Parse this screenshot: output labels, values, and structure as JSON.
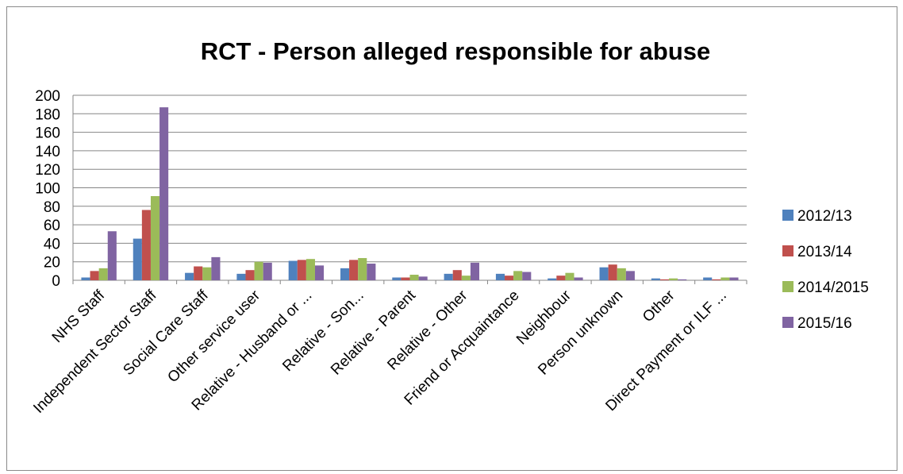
{
  "chart_data": {
    "type": "bar",
    "title": "RCT - Person alleged responsible for abuse",
    "xlabel": "",
    "ylabel": "",
    "ylim": [
      0,
      200
    ],
    "yticks": [
      0,
      20,
      40,
      60,
      80,
      100,
      120,
      140,
      160,
      180,
      200
    ],
    "grid": true,
    "legend_position": "right",
    "categories": [
      "NHS Staff",
      "Independent Sector Staff",
      "Social Care Staff",
      "Other service user",
      "Relative - Husband or ...",
      "Relative - Son...",
      "Relative - Parent",
      "Relative - Other",
      "Friend or Acquaintance",
      "Neighbour",
      "Person unknown",
      "Other",
      "Direct Payment or ILF ..."
    ],
    "series": [
      {
        "name": "2012/13",
        "color": "#4f81bd",
        "values": [
          3,
          45,
          8,
          7,
          21,
          13,
          3,
          7,
          7,
          2,
          14,
          2,
          3
        ]
      },
      {
        "name": "2013/14",
        "color": "#c0504d",
        "values": [
          10,
          76,
          15,
          11,
          22,
          22,
          3,
          11,
          5,
          5,
          17,
          1,
          1
        ]
      },
      {
        "name": "2014/2015",
        "color": "#9bbb59",
        "values": [
          13,
          91,
          14,
          20,
          23,
          24,
          6,
          5,
          10,
          8,
          13,
          2,
          3
        ]
      },
      {
        "name": "2015/16",
        "color": "#8064a2",
        "values": [
          53,
          187,
          25,
          19,
          16,
          18,
          4,
          19,
          9,
          3,
          10,
          1,
          3
        ]
      }
    ]
  }
}
